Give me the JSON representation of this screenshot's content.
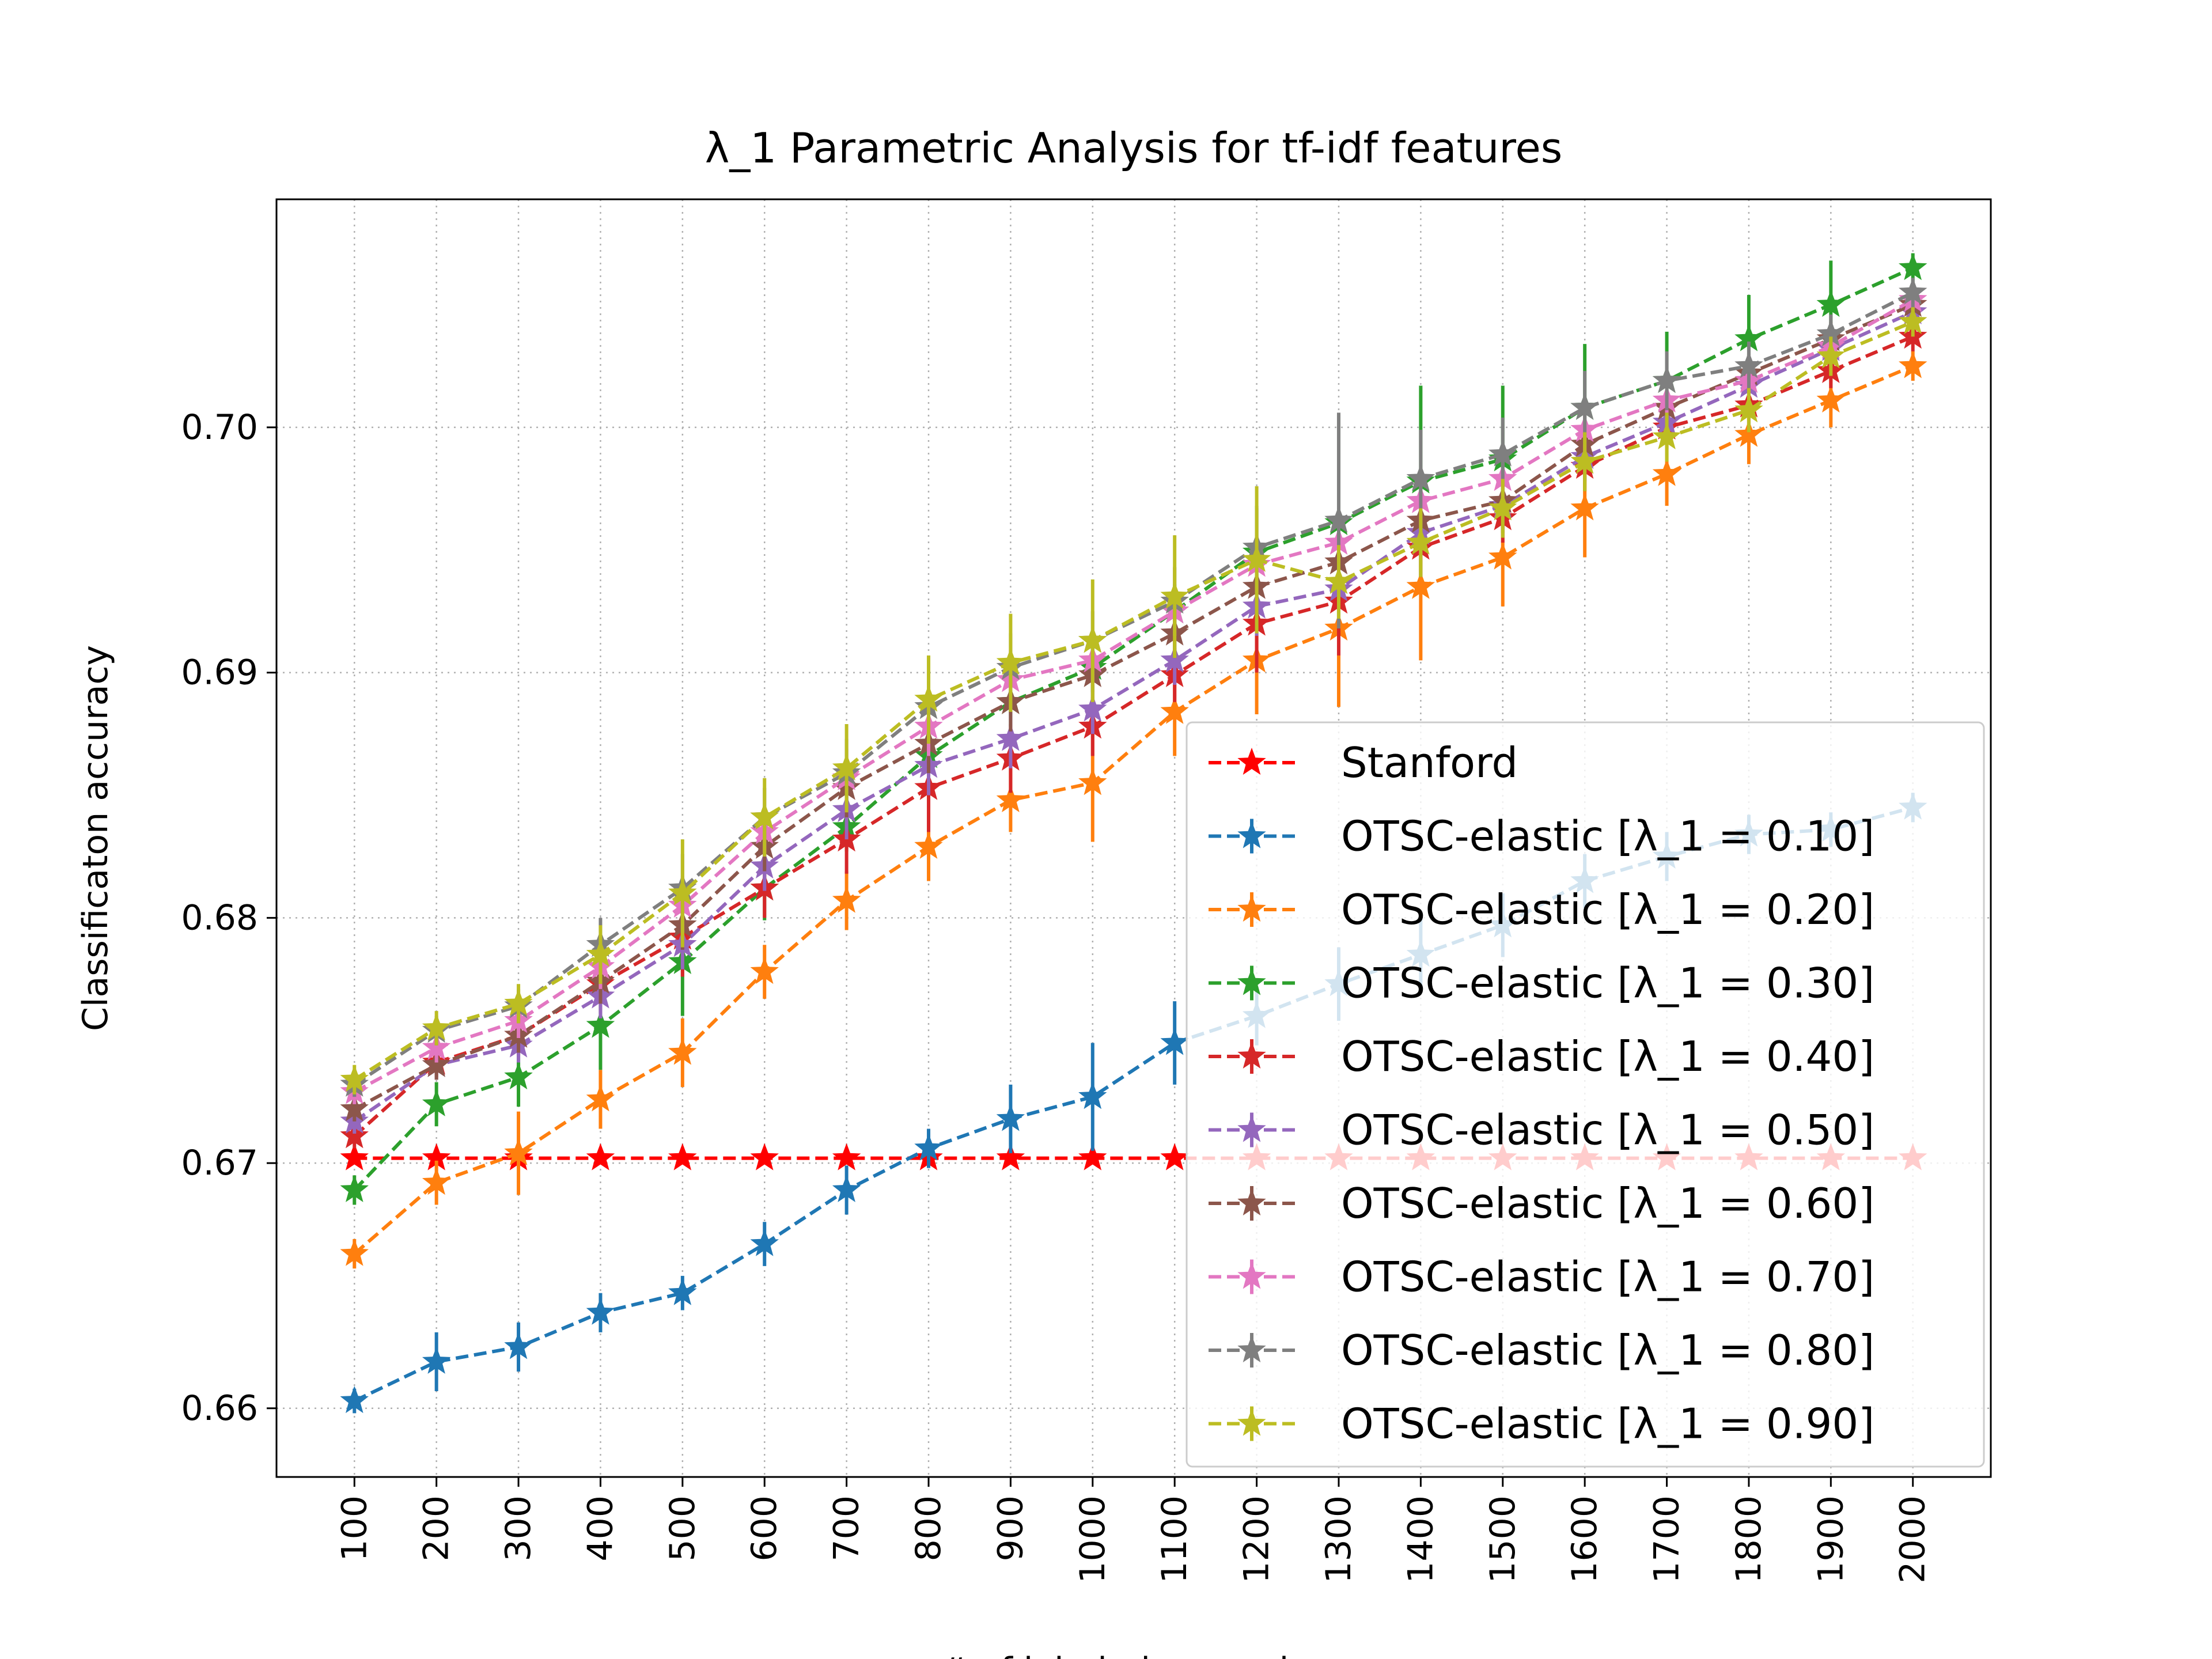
{
  "chart_data": {
    "type": "line",
    "title": "λ_1 Parametric Analysis for tf-idf features",
    "xlabel": "# of labeled examples",
    "ylabel": "Classificaton accuracy",
    "x": [
      100,
      200,
      300,
      400,
      500,
      600,
      700,
      800,
      900,
      1000,
      1100,
      1200,
      1300,
      1400,
      1500,
      1600,
      1700,
      1800,
      1900,
      2000
    ],
    "xlim": [
      5,
      2095
    ],
    "ylim": [
      0.6572,
      0.7093
    ],
    "yticks": [
      0.66,
      0.67,
      0.68,
      0.69,
      0.7
    ],
    "grid": true,
    "legend_position": "lower-right",
    "series": [
      {
        "name": "Stanford",
        "color": "#ff0000",
        "values": [
          0.6702,
          0.6702,
          0.6702,
          0.6702,
          0.6702,
          0.6702,
          0.6702,
          0.6702,
          0.6702,
          0.6702,
          0.6702,
          0.6702,
          0.6702,
          0.6702,
          0.6702,
          0.6702,
          0.6702,
          0.6702,
          0.6702,
          0.6702
        ],
        "errors": [
          0,
          0,
          0,
          0,
          0,
          0,
          0,
          0,
          0,
          0,
          0,
          0,
          0,
          0,
          0,
          0,
          0,
          0,
          0,
          0
        ]
      },
      {
        "name": "OTSC-elastic [λ_1 = 0.10]",
        "color": "#1f77b4",
        "values": [
          0.6603,
          0.6619,
          0.6625,
          0.6639,
          0.6647,
          0.6667,
          0.6689,
          0.6706,
          0.6718,
          0.6727,
          0.6749,
          0.676,
          0.6773,
          0.6785,
          0.6797,
          0.6815,
          0.6825,
          0.6834,
          0.6836,
          0.6845
        ],
        "errors": [
          0.0005,
          0.0012,
          0.001,
          0.0008,
          0.0007,
          0.0009,
          0.001,
          0.0008,
          0.0014,
          0.0022,
          0.0017,
          0.0012,
          0.0015,
          0.0015,
          0.0013,
          0.0011,
          0.001,
          0.0008,
          0.0007,
          0.0006
        ]
      },
      {
        "name": "OTSC-elastic [λ_1 = 0.20]",
        "color": "#ff7f0e",
        "values": [
          0.6663,
          0.6692,
          0.6704,
          0.6726,
          0.6745,
          0.6778,
          0.6807,
          0.6829,
          0.6848,
          0.6855,
          0.6884,
          0.6905,
          0.6918,
          0.6935,
          0.6947,
          0.6967,
          0.6981,
          0.6997,
          0.7011,
          0.7025
        ],
        "errors": [
          0.0006,
          0.0009,
          0.0017,
          0.0012,
          0.0014,
          0.0011,
          0.0012,
          0.0014,
          0.0013,
          0.0024,
          0.0018,
          0.0022,
          0.0032,
          0.003,
          0.002,
          0.002,
          0.0013,
          0.0012,
          0.0011,
          0.0006
        ]
      },
      {
        "name": "OTSC-elastic [λ_1 = 0.30]",
        "color": "#2ca02c",
        "values": [
          0.6689,
          0.6724,
          0.6735,
          0.6756,
          0.6782,
          0.6812,
          0.6837,
          0.6866,
          0.6888,
          0.6902,
          0.6925,
          0.6949,
          0.6961,
          0.6978,
          0.6987,
          0.7008,
          0.7019,
          0.7036,
          0.705,
          0.7065
        ],
        "errors": [
          0.0006,
          0.0009,
          0.0012,
          0.0018,
          0.0022,
          0.0013,
          0.001,
          0.0012,
          0.001,
          0.001,
          0.0011,
          0.0019,
          0.0044,
          0.0039,
          0.003,
          0.0026,
          0.002,
          0.0018,
          0.0018,
          0.0006
        ]
      },
      {
        "name": "OTSC-elastic [λ_1 = 0.40]",
        "color": "#d62728",
        "values": [
          0.6711,
          0.6741,
          0.6752,
          0.6773,
          0.6792,
          0.6812,
          0.6832,
          0.6853,
          0.6865,
          0.6878,
          0.6899,
          0.692,
          0.6929,
          0.6951,
          0.6963,
          0.6984,
          0.7,
          0.7009,
          0.7023,
          0.7037
        ],
        "errors": [
          0.0005,
          0.0006,
          0.0008,
          0.0012,
          0.0016,
          0.0012,
          0.0014,
          0.0018,
          0.0014,
          0.0012,
          0.0011,
          0.002,
          0.0022,
          0.0012,
          0.001,
          0.001,
          0.0009,
          0.0008,
          0.0007,
          0.0006
        ]
      },
      {
        "name": "OTSC-elastic [λ_1 = 0.50]",
        "color": "#9467bd",
        "values": [
          0.6717,
          0.674,
          0.6748,
          0.6768,
          0.6789,
          0.6821,
          0.6844,
          0.6862,
          0.6873,
          0.6885,
          0.6905,
          0.6927,
          0.6934,
          0.6957,
          0.6968,
          0.6988,
          0.7002,
          0.7017,
          0.7032,
          0.7047
        ],
        "errors": [
          0.0005,
          0.0006,
          0.0007,
          0.0009,
          0.001,
          0.001,
          0.0012,
          0.0012,
          0.0012,
          0.001,
          0.001,
          0.0012,
          0.0012,
          0.001,
          0.001,
          0.001,
          0.0008,
          0.0008,
          0.0007,
          0.0006
        ]
      },
      {
        "name": "OTSC-elastic [λ_1 = 0.60]",
        "color": "#8c564b",
        "values": [
          0.6722,
          0.674,
          0.6752,
          0.6774,
          0.6797,
          0.6829,
          0.6853,
          0.6871,
          0.6888,
          0.6899,
          0.6916,
          0.6935,
          0.6945,
          0.6962,
          0.697,
          0.6993,
          0.7008,
          0.7022,
          0.7036,
          0.705
        ],
        "errors": [
          0.0005,
          0.0006,
          0.0007,
          0.0009,
          0.001,
          0.001,
          0.0012,
          0.0012,
          0.0012,
          0.001,
          0.001,
          0.0012,
          0.0012,
          0.001,
          0.001,
          0.001,
          0.0008,
          0.0008,
          0.0007,
          0.0006
        ]
      },
      {
        "name": "OTSC-elastic [λ_1 = 0.70]",
        "color": "#e377c2",
        "values": [
          0.6729,
          0.6747,
          0.6758,
          0.678,
          0.6805,
          0.6835,
          0.6857,
          0.6878,
          0.6897,
          0.6905,
          0.6925,
          0.6944,
          0.6953,
          0.697,
          0.6979,
          0.6999,
          0.7011,
          0.7019,
          0.7033,
          0.7052
        ],
        "errors": [
          0.0005,
          0.0006,
          0.0007,
          0.0009,
          0.0012,
          0.001,
          0.0012,
          0.0012,
          0.0012,
          0.001,
          0.001,
          0.0012,
          0.0012,
          0.001,
          0.001,
          0.001,
          0.0008,
          0.0008,
          0.0007,
          0.0006
        ]
      },
      {
        "name": "OTSC-elastic [λ_1 = 0.80]",
        "color": "#7f7f7f",
        "values": [
          0.6732,
          0.6754,
          0.6764,
          0.6789,
          0.6812,
          0.6841,
          0.6859,
          0.6886,
          0.6902,
          0.6913,
          0.6929,
          0.6951,
          0.6962,
          0.6979,
          0.6989,
          0.7008,
          0.7019,
          0.7025,
          0.7038,
          0.7055
        ],
        "errors": [
          0.0005,
          0.0006,
          0.0007,
          0.0011,
          0.0014,
          0.0012,
          0.0014,
          0.0014,
          0.0014,
          0.0012,
          0.0014,
          0.0016,
          0.0044,
          0.002,
          0.0015,
          0.0015,
          0.0012,
          0.001,
          0.0008,
          0.0006
        ]
      },
      {
        "name": "OTSC-elastic [λ_1 = 0.90]",
        "color": "#bcbd22",
        "values": [
          0.6734,
          0.6755,
          0.6765,
          0.6785,
          0.681,
          0.6841,
          0.6861,
          0.6889,
          0.6904,
          0.6913,
          0.6931,
          0.6946,
          0.6937,
          0.6953,
          0.6967,
          0.6986,
          0.6996,
          0.7007,
          0.7029,
          0.7043
        ],
        "errors": [
          0.0006,
          0.0007,
          0.0008,
          0.0012,
          0.0022,
          0.0016,
          0.0018,
          0.0018,
          0.002,
          0.0025,
          0.0025,
          0.003,
          0.0015,
          0.0014,
          0.0012,
          0.0012,
          0.001,
          0.0009,
          0.0008,
          0.0006
        ]
      }
    ]
  }
}
